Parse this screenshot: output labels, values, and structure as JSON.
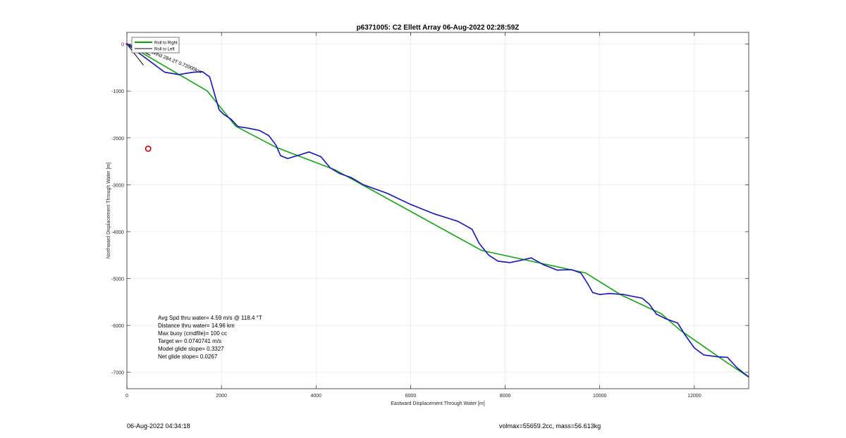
{
  "chart_data": {
    "type": "line",
    "title": "p6371005: C2 Ellett Array 06-Aug-2022 02:28:59Z",
    "xlabel": "Eastward Displacement Through Water [m]",
    "ylabel": "Northward Displacement Through Water [m]",
    "xlim": [
      0,
      13150
    ],
    "ylim": [
      -7350,
      250
    ],
    "xticks": [
      0,
      2000,
      4000,
      6000,
      8000,
      10000,
      12000
    ],
    "yticks": [
      0,
      -1000,
      -2000,
      -3000,
      -4000,
      -5000,
      -6000,
      -7000
    ],
    "grid": true,
    "legend": {
      "placement": "top-left",
      "entries": [
        {
          "label": "Roll to Right",
          "color": "#00a000"
        },
        {
          "label": "Roll to Left",
          "color": "#000000"
        }
      ]
    },
    "series": [
      {
        "name": "Roll to Right",
        "color": "#1aa01a",
        "x": [
          0,
          1700,
          2300,
          3150,
          4400,
          7500,
          9700,
          10450,
          11300,
          11700,
          12700,
          13150
        ],
        "y": [
          0,
          -1000,
          -1750,
          -2200,
          -2680,
          -4400,
          -4880,
          -5350,
          -5750,
          -6100,
          -6800,
          -7100
        ]
      },
      {
        "name": "Roll to Left",
        "color": "#000000",
        "x": [
          0,
          400,
          800,
          1100,
          1400,
          1600,
          1750,
          1850,
          1950,
          2050,
          2200,
          2350,
          2550,
          2800,
          3000,
          3150,
          3250,
          3400,
          3600,
          3850,
          4100,
          4300,
          4500,
          4750,
          5000,
          5500,
          6000,
          6500,
          7000,
          7300,
          7450,
          7650,
          7850,
          8100,
          8300,
          8550,
          8800,
          9100,
          9400,
          9600,
          9750,
          9850,
          10000,
          10200,
          10500,
          10900,
          11050,
          11200,
          11400,
          11650,
          11800,
          12000,
          12200,
          12500,
          12700,
          12900,
          13150
        ],
        "y": [
          0,
          -300,
          -600,
          -650,
          -600,
          -590,
          -700,
          -1050,
          -1400,
          -1500,
          -1600,
          -1760,
          -1790,
          -1840,
          -1950,
          -2150,
          -2380,
          -2440,
          -2380,
          -2300,
          -2400,
          -2640,
          -2760,
          -2850,
          -3000,
          -3180,
          -3420,
          -3620,
          -3780,
          -3950,
          -4250,
          -4500,
          -4630,
          -4660,
          -4620,
          -4560,
          -4700,
          -4820,
          -4810,
          -4880,
          -5120,
          -5300,
          -5340,
          -5320,
          -5340,
          -5420,
          -5550,
          -5760,
          -5860,
          -5950,
          -6200,
          -6480,
          -6630,
          -6670,
          -6680,
          -6900,
          -7100
        ]
      }
    ],
    "heading_lines": [
      {
        "x": [
          0,
          350
        ],
        "y": [
          0,
          -450
        ]
      },
      {
        "x": [
          0,
          560
        ],
        "y": [
          0,
          -420
        ]
      },
      {
        "x": [
          0,
          700
        ],
        "y": [
          0,
          -170
        ]
      },
      {
        "x": [
          0,
          500
        ],
        "y": [
          0,
          -240
        ]
      }
    ],
    "annotations": [
      {
        "text": "Surface Wind 284.2T  0.72000km",
        "x": 150,
        "y": -50,
        "rotation": 22
      }
    ],
    "marker": {
      "x": 450,
      "y": -2230,
      "color": "#cc0000"
    },
    "stats": [
      "Avg Spd thru water=  4.59 m/s @ 118.4 °T",
      "Distance thru water= 14.96 km",
      "Max buoy (cmdfile)= 100 cc",
      "Target w= 0.0740741 m/s",
      "Model glide slope= 0.3327",
      "Net glide slope= 0.0267"
    ]
  },
  "footer": {
    "timestamp": "06-Aug-2022 04:34:18",
    "volume_mass": "volmax=55659.2cc, mass=56.613kg"
  }
}
